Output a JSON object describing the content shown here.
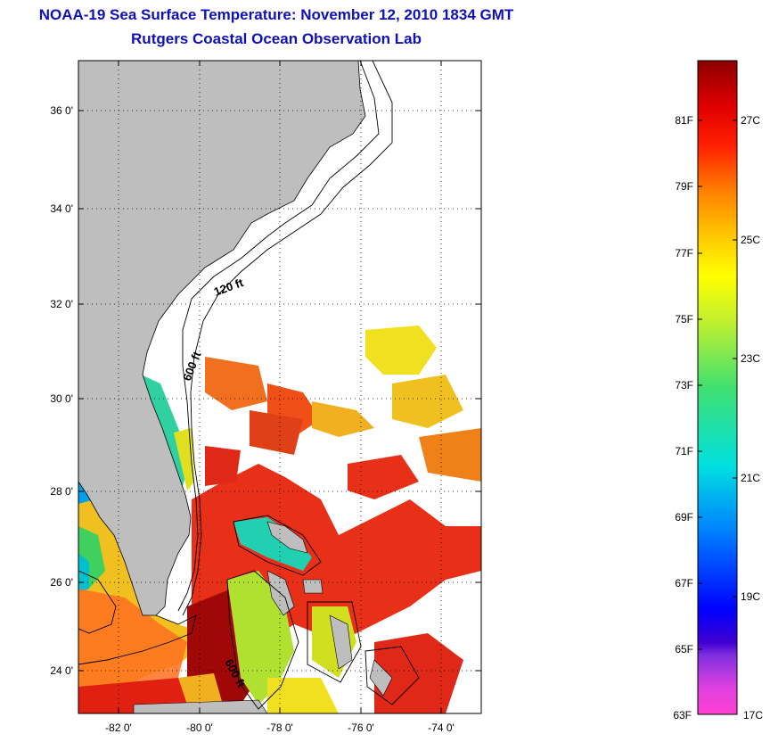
{
  "header": {
    "title": "NOAA-19 Sea Surface Temperature:  November 12, 2010 1834 GMT",
    "subtitle": "Rutgers Coastal Ocean Observation Lab"
  },
  "map": {
    "lat_labels": [
      "36 0'",
      "34 0'",
      "32 0'",
      "30 0'",
      "28 0'",
      "26 0'",
      "24 0'"
    ],
    "lon_labels": [
      "-82 0'",
      "-80 0'",
      "-78 0'",
      "-76 0'",
      "-74 0'"
    ],
    "lat_range": [
      23,
      37
    ],
    "lon_range": [
      -83,
      -73
    ],
    "depth_labels": [
      "120 ft",
      "600 ft",
      "600 ft"
    ],
    "land_color": "#bebebe",
    "no_data_color": "#ffffff"
  },
  "colorbar": {
    "fahrenheit_labels": [
      "81F",
      "79F",
      "77F",
      "75F",
      "73F",
      "71F",
      "69F",
      "67F",
      "65F",
      "63F"
    ],
    "celsius_labels": [
      "27C",
      "25C",
      "23C",
      "21C",
      "19C",
      "17C"
    ],
    "colors": [
      "#ff40d0",
      "#c040e0",
      "#4000d0",
      "#0000ff",
      "#0080ff",
      "#00e0e0",
      "#40e070",
      "#c0f030",
      "#ffff00",
      "#ffc000",
      "#ff8000",
      "#ff2000",
      "#e00000",
      "#8b0000"
    ]
  }
}
